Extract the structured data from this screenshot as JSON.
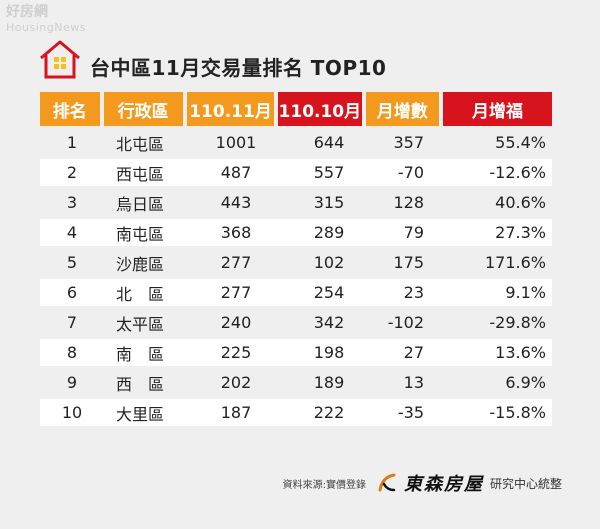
{
  "watermark": {
    "main": "好房網",
    "sub": "HousingNews"
  },
  "title": "台中區11月交易量排名 TOP10",
  "headers": [
    "排名",
    "行政區",
    "110.11月",
    "110.10月",
    "月增數",
    "月增福"
  ],
  "header_colors": [
    "#f39a1e",
    "#f39a1e",
    "#f39a1e",
    "#d7141e",
    "#f39a1e",
    "#d7141e"
  ],
  "rows": [
    {
      "rank": "1",
      "district": "北屯區",
      "nov": "1001",
      "oct": "644",
      "diff": "357",
      "pct": "55.4%"
    },
    {
      "rank": "2",
      "district": "西屯區",
      "nov": "487",
      "oct": "557",
      "diff": "-70",
      "pct": "-12.6%"
    },
    {
      "rank": "3",
      "district": "烏日區",
      "nov": "443",
      "oct": "315",
      "diff": "128",
      "pct": "40.6%"
    },
    {
      "rank": "4",
      "district": "南屯區",
      "nov": "368",
      "oct": "289",
      "diff": "79",
      "pct": "27.3%"
    },
    {
      "rank": "5",
      "district": "沙鹿區",
      "nov": "277",
      "oct": "102",
      "diff": "175",
      "pct": "171.6%"
    },
    {
      "rank": "6",
      "district": "北　區",
      "nov": "277",
      "oct": "254",
      "diff": "23",
      "pct": "9.1%"
    },
    {
      "rank": "7",
      "district": "太平區",
      "nov": "240",
      "oct": "342",
      "diff": "-102",
      "pct": "-29.8%"
    },
    {
      "rank": "8",
      "district": "南　區",
      "nov": "225",
      "oct": "198",
      "diff": "27",
      "pct": "13.6%"
    },
    {
      "rank": "9",
      "district": "西　區",
      "nov": "202",
      "oct": "189",
      "diff": "13",
      "pct": "6.9%"
    },
    {
      "rank": "10",
      "district": "大里區",
      "nov": "187",
      "oct": "222",
      "diff": "-35",
      "pct": "-15.8%"
    }
  ],
  "footer": {
    "source": "資料來源:實價登錄",
    "brand": "東森房屋",
    "center": "研究中心統整"
  },
  "icons": {
    "title_icon": "house-icon",
    "logo": "brand-logo-icon"
  }
}
